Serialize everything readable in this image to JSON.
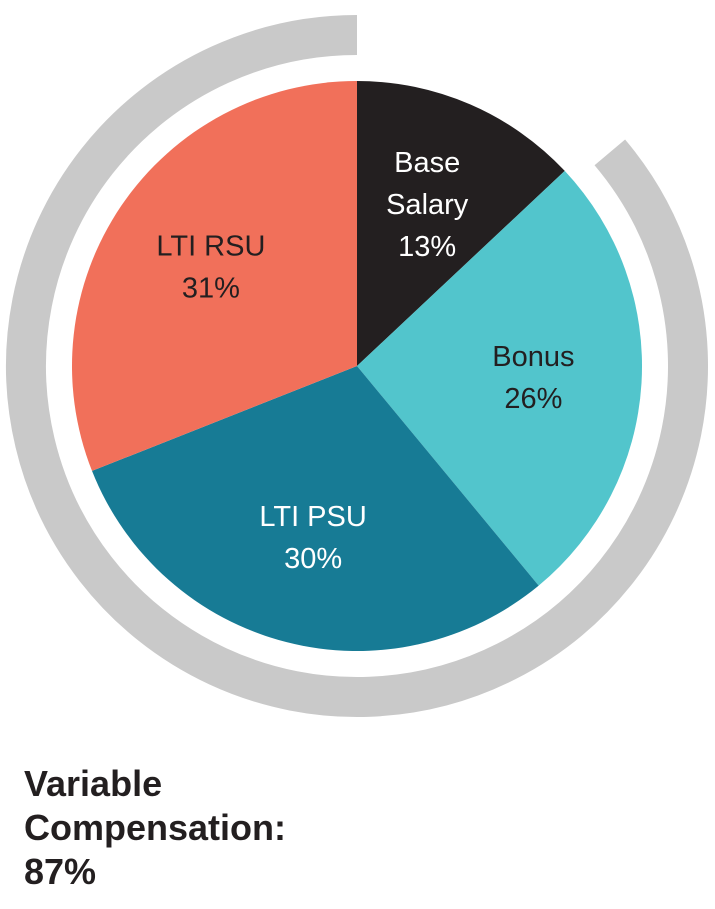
{
  "chart_data": {
    "type": "pie",
    "slices": [
      {
        "label_lines": [
          "Base",
          "Salary"
        ],
        "value": 13,
        "value_label": "13%",
        "color": "#231f20",
        "text_color": "#ffffff"
      },
      {
        "label_lines": [
          "Bonus"
        ],
        "value": 26,
        "value_label": "26%",
        "color": "#52c5cc",
        "text_color": "#231f20"
      },
      {
        "label_lines": [
          "LTI PSU"
        ],
        "value": 30,
        "value_label": "30%",
        "color": "#177b95",
        "text_color": "#ffffff"
      },
      {
        "label_lines": [
          "LTI RSU"
        ],
        "value": 31,
        "value_label": "31%",
        "color": "#f1705a",
        "text_color": "#231f20"
      }
    ],
    "outer_arcs": [
      {
        "name": "Variable Compensation",
        "value": 87,
        "color": "#c9c9c9"
      }
    ],
    "start_angle_deg": 0,
    "direction": "clockwise"
  },
  "caption": {
    "line1": "Variable",
    "line2": "Compensation:",
    "line3": "87%"
  }
}
